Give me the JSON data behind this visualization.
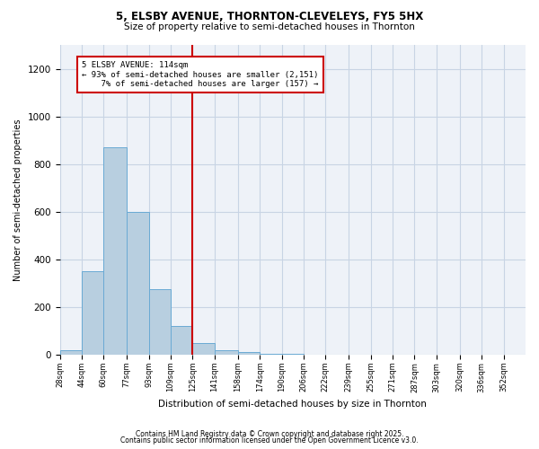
{
  "title1": "5, ELSBY AVENUE, THORNTON-CLEVELEYS, FY5 5HX",
  "title2": "Size of property relative to semi-detached houses in Thornton",
  "xlabel": "Distribution of semi-detached houses by size in Thornton",
  "ylabel": "Number of semi-detached properties",
  "bar_labels": [
    "28sqm",
    "44sqm",
    "60sqm",
    "77sqm",
    "93sqm",
    "109sqm",
    "125sqm",
    "141sqm",
    "158sqm",
    "174sqm",
    "190sqm",
    "206sqm",
    "222sqm",
    "239sqm",
    "255sqm",
    "271sqm",
    "287sqm",
    "303sqm",
    "320sqm",
    "336sqm",
    "352sqm"
  ],
  "bar_values": [
    20,
    350,
    870,
    600,
    275,
    120,
    50,
    20,
    10,
    5,
    2,
    0,
    0,
    0,
    0,
    0,
    0,
    0,
    0,
    0,
    0
  ],
  "bin_edges": [
    28,
    44,
    60,
    77,
    93,
    109,
    125,
    141,
    158,
    174,
    190,
    206,
    222,
    239,
    255,
    271,
    287,
    303,
    320,
    336,
    352
  ],
  "bin_width": 16,
  "property_label": "5 ELSBY AVENUE: 114sqm",
  "pct_smaller": 93,
  "n_smaller": 2151,
  "pct_larger": 7,
  "n_larger": 157,
  "vline_x": 125,
  "bar_color": "#b8cfe0",
  "bar_edge_color": "#6aaad4",
  "vline_color": "#cc0000",
  "box_edge_color": "#cc0000",
  "ylim": [
    0,
    1300
  ],
  "yticks": [
    0,
    200,
    400,
    600,
    800,
    1000,
    1200
  ],
  "grid_color": "#c8d4e4",
  "bg_color": "#eef2f8",
  "footer1": "Contains HM Land Registry data © Crown copyright and database right 2025.",
  "footer2": "Contains public sector information licensed under the Open Government Licence v3.0."
}
